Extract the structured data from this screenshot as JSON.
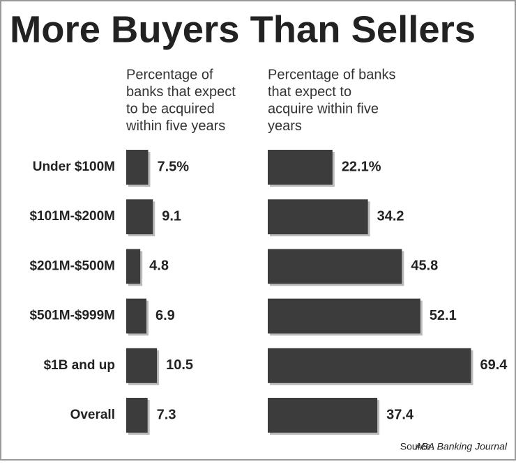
{
  "title": "More Buyers Than Sellers",
  "source_label": "Source:",
  "source": "ABA Banking Journal",
  "chart_data": [
    {
      "type": "bar",
      "orientation": "horizontal",
      "subtitle": [
        "Percentage of",
        "banks that expect",
        "to be acquired",
        "within five years"
      ],
      "categories": [
        "Under $100M",
        "$101M-$200M",
        "$201M-$500M",
        "$501M-$999M",
        "$1B and up",
        "Overall"
      ],
      "values": [
        7.5,
        9.1,
        4.8,
        6.9,
        10.5,
        7.3
      ],
      "value_labels": [
        "7.5%",
        "9.1",
        "4.8",
        "6.9",
        "10.5",
        "7.3"
      ],
      "color": "#3c3c3c"
    },
    {
      "type": "bar",
      "orientation": "horizontal",
      "subtitle": [
        "Percentage of banks",
        "that expect to",
        "acquire within five",
        "years"
      ],
      "values": [
        22.1,
        34.2,
        45.8,
        52.1,
        69.4,
        37.4
      ],
      "value_labels": [
        "22.1%",
        "34.2",
        "45.8",
        "52.1",
        "69.4",
        "37.4"
      ],
      "color": "#3c3c3c"
    }
  ]
}
